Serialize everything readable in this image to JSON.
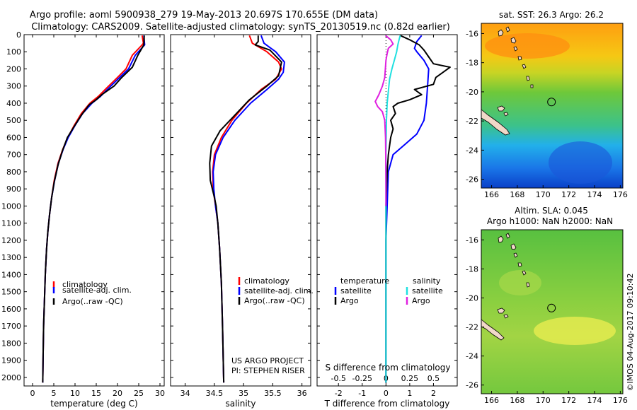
{
  "header": {
    "line1": "Argo profile: aoml 5900938_279 19-May-2013 20.697S 170.655E (DM data)",
    "line2": "Climatology: CARS2009. Satellite-adjusted climatology: synTS_20130519.nc (0.82d earlier)"
  },
  "colors": {
    "climatology": "#ff0000",
    "satellite": "#0000ff",
    "argo": "#000000",
    "argo_s": "#e020e0",
    "satellite_s": "#20e0e0"
  },
  "chart_data": [
    {
      "type": "line",
      "xlabel": "temperature (deg C)",
      "xlim": [
        -2,
        31
      ],
      "ylim": [
        2050,
        0
      ],
      "xticks": [
        0,
        5,
        10,
        15,
        20,
        25,
        30
      ],
      "yticks": [
        0,
        100,
        200,
        300,
        400,
        500,
        600,
        700,
        800,
        900,
        1000,
        1100,
        1200,
        1300,
        1400,
        1500,
        1600,
        1700,
        1800,
        1900,
        2000
      ],
      "legend": [
        "climatology",
        "satellite-adj. clim.",
        "Argo(..raw -QC)"
      ],
      "series": [
        {
          "name": "climatology",
          "color": "#ff0000",
          "points": [
            [
              25.8,
              5
            ],
            [
              26.1,
              50
            ],
            [
              25.8,
              60
            ],
            [
              23.5,
              120
            ],
            [
              22,
              200
            ],
            [
              20,
              250
            ],
            [
              17.5,
              310
            ],
            [
              15.5,
              360
            ],
            [
              13.5,
              400
            ],
            [
              11.5,
              460
            ],
            [
              9.8,
              530
            ],
            [
              8.3,
              600
            ],
            [
              7.1,
              670
            ],
            [
              6,
              750
            ],
            [
              5.1,
              850
            ],
            [
              4.5,
              950
            ],
            [
              4,
              1050
            ],
            [
              3.6,
              1150
            ],
            [
              3.3,
              1250
            ],
            [
              3,
              1400
            ],
            [
              2.8,
              1550
            ],
            [
              2.6,
              1700
            ],
            [
              2.5,
              1850
            ],
            [
              2.4,
              2030
            ]
          ]
        },
        {
          "name": "satellite-adj. clim.",
          "color": "#0000ff",
          "points": [
            [
              26.2,
              5
            ],
            [
              26.4,
              60
            ],
            [
              24.2,
              120
            ],
            [
              22.6,
              200
            ],
            [
              20.5,
              250
            ],
            [
              18,
              310
            ],
            [
              16,
              360
            ],
            [
              14,
              400
            ],
            [
              11.8,
              460
            ],
            [
              10,
              530
            ],
            [
              8.4,
              600
            ],
            [
              7.2,
              670
            ],
            [
              6.1,
              750
            ],
            [
              5.2,
              850
            ],
            [
              4.5,
              950
            ],
            [
              4,
              1050
            ],
            [
              3.6,
              1150
            ],
            [
              3.3,
              1250
            ],
            [
              3,
              1400
            ],
            [
              2.8,
              1550
            ],
            [
              2.6,
              1700
            ],
            [
              2.5,
              1850
            ],
            [
              2.4,
              2030
            ]
          ]
        },
        {
          "name": "Argo(..raw -QC)",
          "color": "#000000",
          "points": [
            [
              26.3,
              5
            ],
            [
              26.2,
              60
            ],
            [
              24.8,
              120
            ],
            [
              23.5,
              190
            ],
            [
              21,
              250
            ],
            [
              19.2,
              300
            ],
            [
              16.3,
              350
            ],
            [
              15,
              380
            ],
            [
              13.3,
              410
            ],
            [
              11.5,
              470
            ],
            [
              9.7,
              540
            ],
            [
              8.2,
              600
            ],
            [
              7,
              680
            ],
            [
              6,
              760
            ],
            [
              5.1,
              860
            ],
            [
              4.5,
              950
            ],
            [
              4,
              1050
            ],
            [
              3.6,
              1150
            ],
            [
              3.3,
              1250
            ],
            [
              3,
              1400
            ],
            [
              2.8,
              1550
            ],
            [
              2.6,
              1700
            ],
            [
              2.5,
              1850
            ],
            [
              2.4,
              2030
            ]
          ]
        }
      ]
    },
    {
      "type": "line",
      "xlabel": "salinity",
      "xlim": [
        33.75,
        36.15
      ],
      "ylim": [
        2050,
        0
      ],
      "xticks": [
        34,
        34.5,
        35,
        35.5,
        36
      ],
      "legend": [
        "climatology",
        "satellite-adj. clim.",
        "Argo(..raw -QC)"
      ],
      "annotation": [
        "US ARGO PROJECT",
        "PI: STEPHEN RISER"
      ],
      "series": [
        {
          "name": "climatology",
          "color": "#ff0000",
          "points": [
            [
              35.1,
              5
            ],
            [
              35.15,
              50
            ],
            [
              35.4,
              100
            ],
            [
              35.6,
              160
            ],
            [
              35.65,
              200
            ],
            [
              35.55,
              260
            ],
            [
              35.3,
              320
            ],
            [
              35.05,
              400
            ],
            [
              34.8,
              500
            ],
            [
              34.62,
              600
            ],
            [
              34.5,
              700
            ],
            [
              34.47,
              800
            ],
            [
              34.48,
              900
            ],
            [
              34.52,
              1000
            ],
            [
              34.56,
              1100
            ],
            [
              34.59,
              1250
            ],
            [
              34.62,
              1450
            ],
            [
              34.64,
              1700
            ],
            [
              34.66,
              2030
            ]
          ]
        },
        {
          "name": "satellite-adj. clim.",
          "color": "#0000ff",
          "points": [
            [
              35.3,
              5
            ],
            [
              35.35,
              50
            ],
            [
              35.55,
              100
            ],
            [
              35.7,
              160
            ],
            [
              35.68,
              220
            ],
            [
              35.6,
              260
            ],
            [
              35.4,
              320
            ],
            [
              35.12,
              400
            ],
            [
              34.85,
              500
            ],
            [
              34.65,
              600
            ],
            [
              34.52,
              700
            ],
            [
              34.48,
              800
            ],
            [
              34.49,
              900
            ],
            [
              34.52,
              1000
            ],
            [
              34.56,
              1100
            ],
            [
              34.59,
              1250
            ],
            [
              34.62,
              1450
            ],
            [
              34.64,
              1700
            ],
            [
              34.66,
              2030
            ]
          ]
        },
        {
          "name": "Argo(..raw -QC)",
          "color": "#000000",
          "points": [
            [
              35.25,
              5
            ],
            [
              35.25,
              40
            ],
            [
              35.2,
              60
            ],
            [
              35.45,
              90
            ],
            [
              35.65,
              160
            ],
            [
              35.6,
              240
            ],
            [
              35.4,
              300
            ],
            [
              35.1,
              380
            ],
            [
              34.85,
              470
            ],
            [
              34.6,
              560
            ],
            [
              34.45,
              650
            ],
            [
              34.42,
              750
            ],
            [
              34.43,
              850
            ],
            [
              34.5,
              950
            ],
            [
              34.53,
              1000
            ],
            [
              34.56,
              1100
            ],
            [
              34.59,
              1250
            ],
            [
              34.62,
              1450
            ],
            [
              34.64,
              1700
            ],
            [
              34.66,
              2030
            ]
          ]
        }
      ]
    },
    {
      "type": "line",
      "xlabel": "T difference from climatology",
      "xlabel_top": "S difference from climatology",
      "xlim": [
        -2.9,
        3
      ],
      "ylim": [
        2050,
        0
      ],
      "xticks": [
        -2,
        -1,
        0,
        1,
        2
      ],
      "xticks_top": [
        -0.5,
        -0.25,
        0,
        0.25,
        0.5
      ],
      "legend_titles": [
        "temperature",
        "salinity"
      ],
      "legend": [
        "satellite",
        "Argo",
        "satellite",
        "Argo"
      ],
      "series": [
        {
          "name": "satellite",
          "color": "#0000ff",
          "points": [
            [
              1.5,
              5
            ],
            [
              1.3,
              40
            ],
            [
              1.2,
              80
            ],
            [
              1.3,
              100
            ],
            [
              1.6,
              150
            ],
            [
              1.8,
              200
            ],
            [
              1.75,
              300
            ],
            [
              1.7,
              400
            ],
            [
              1.6,
              500
            ],
            [
              1.3,
              580
            ],
            [
              0.8,
              640
            ],
            [
              0.3,
              700
            ],
            [
              0.1,
              800
            ],
            [
              0.05,
              1000
            ],
            [
              0,
              1200
            ],
            [
              0,
              1500
            ],
            [
              0,
              1800
            ],
            [
              0,
              2030
            ]
          ]
        },
        {
          "name": "Argo",
          "color": "#000000",
          "points": [
            [
              0.6,
              5
            ],
            [
              1,
              30
            ],
            [
              1.4,
              60
            ],
            [
              1.6,
              90
            ],
            [
              1.8,
              130
            ],
            [
              2,
              170
            ],
            [
              2.7,
              190
            ],
            [
              2.4,
              220
            ],
            [
              2.1,
              250
            ],
            [
              2,
              290
            ],
            [
              1.2,
              320
            ],
            [
              1.5,
              350
            ],
            [
              1,
              380
            ],
            [
              0.5,
              400
            ],
            [
              0.3,
              420
            ],
            [
              0.4,
              460
            ],
            [
              0.2,
              500
            ],
            [
              0.3,
              550
            ],
            [
              0.2,
              600
            ],
            [
              0.1,
              700
            ],
            [
              0.05,
              800
            ],
            [
              0,
              1000
            ],
            [
              0,
              1500
            ],
            [
              0,
              2030
            ]
          ]
        },
        {
          "name": "satellite",
          "color": "#20e0e0",
          "points": [
            [
              0.6,
              5
            ],
            [
              0.55,
              30
            ],
            [
              0.5,
              60
            ],
            [
              0.45,
              100
            ],
            [
              0.35,
              150
            ],
            [
              0.25,
              200
            ],
            [
              0.15,
              260
            ],
            [
              0.1,
              330
            ],
            [
              0.05,
              400
            ],
            [
              0.02,
              500
            ],
            [
              0,
              700
            ],
            [
              0,
              900
            ],
            [
              0,
              1200
            ],
            [
              0,
              1500
            ],
            [
              0,
              1800
            ],
            [
              0,
              2030
            ]
          ]
        },
        {
          "name": "Argo",
          "color": "#e020e0",
          "points": [
            [
              -0.02,
              5
            ],
            [
              0.2,
              30
            ],
            [
              0.3,
              55
            ],
            [
              0.1,
              80
            ],
            [
              0.05,
              110
            ],
            [
              0,
              150
            ],
            [
              -0.05,
              250
            ],
            [
              -0.15,
              300
            ],
            [
              -0.3,
              350
            ],
            [
              -0.45,
              390
            ],
            [
              -0.35,
              420
            ],
            [
              -0.15,
              450
            ],
            [
              -0.05,
              500
            ],
            [
              -0.02,
              600
            ],
            [
              -0.01,
              700
            ],
            [
              0,
              900
            ],
            [
              0,
              1000
            ]
          ]
        }
      ]
    },
    {
      "type": "heatmap",
      "title": "sat. SST: 26.3 Argo: 26.2",
      "xticks": [
        166,
        168,
        170,
        172,
        174,
        176
      ],
      "yticks": [
        -16,
        -18,
        -20,
        -22,
        -24,
        -26
      ],
      "xlim": [
        165.2,
        176.2
      ],
      "ylim": [
        -15.3,
        -26.6
      ],
      "marker": [
        170.655,
        -20.697
      ]
    },
    {
      "type": "heatmap",
      "title": "Altim. SLA: 0.045",
      "subtitle": "Argo h1000: NaN h2000: NaN",
      "xticks": [
        166,
        168,
        170,
        172,
        174,
        176
      ],
      "yticks": [
        -16,
        -18,
        -20,
        -22,
        -24,
        -26
      ],
      "xlim": [
        165.2,
        176.2
      ],
      "ylim": [
        -15.3,
        -26.6
      ],
      "marker": [
        170.655,
        -20.697
      ]
    }
  ],
  "credit": "©IMOS 04-Aug-2017 09:10:42"
}
